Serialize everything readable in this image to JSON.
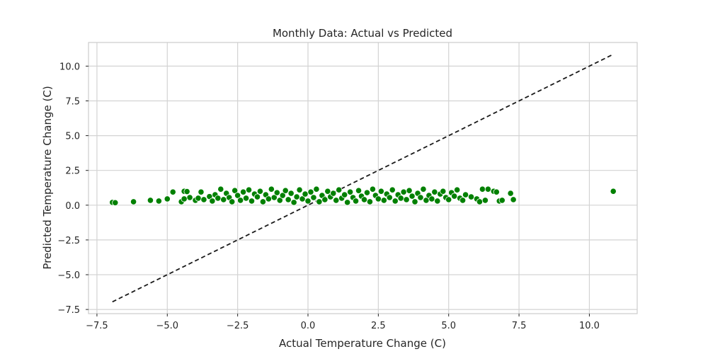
{
  "chart_data": {
    "type": "scatter",
    "title": "Monthly Data: Actual vs Predicted",
    "xlabel": "Actual Temperature Change (C)",
    "ylabel": "Predicted Temperature Change (C)",
    "xlim": [
      -7.8,
      11.7
    ],
    "ylim": [
      -7.8,
      11.7
    ],
    "xticks": [
      -7.5,
      -5.0,
      -2.5,
      0.0,
      2.5,
      5.0,
      7.5,
      10.0
    ],
    "xtick_labels": [
      "−7.5",
      "−5.0",
      "−2.5",
      "0.0",
      "2.5",
      "5.0",
      "7.5",
      "10.0"
    ],
    "yticks": [
      -7.5,
      -5.0,
      -2.5,
      0.0,
      2.5,
      5.0,
      7.5,
      10.0
    ],
    "ytick_labels": [
      "−7.5",
      "−5.0",
      "−2.5",
      "0.0",
      "2.5",
      "5.0",
      "7.5",
      "10.0"
    ],
    "grid": true,
    "point_color": "#008000",
    "point_edge_color": "#ffffff",
    "reference_line": {
      "x": [
        -6.95,
        10.85
      ],
      "y": [
        -6.95,
        10.85
      ],
      "style": "dashed",
      "color": "#1a1a1a"
    },
    "points": [
      [
        -6.95,
        0.2
      ],
      [
        -6.85,
        0.18
      ],
      [
        -6.2,
        0.25
      ],
      [
        -5.6,
        0.35
      ],
      [
        -5.3,
        0.3
      ],
      [
        -5.0,
        0.45
      ],
      [
        -4.8,
        0.95
      ],
      [
        -4.4,
        1.0
      ],
      [
        -4.3,
        0.98
      ],
      [
        -4.5,
        0.25
      ],
      [
        -4.2,
        0.55
      ],
      [
        -4.4,
        0.45
      ],
      [
        -4.0,
        0.35
      ],
      [
        -3.9,
        0.5
      ],
      [
        -3.8,
        0.95
      ],
      [
        -3.7,
        0.4
      ],
      [
        -3.5,
        0.62
      ],
      [
        -3.4,
        0.3
      ],
      [
        -3.3,
        0.75
      ],
      [
        -3.2,
        0.5
      ],
      [
        -3.1,
        1.15
      ],
      [
        -3.0,
        0.4
      ],
      [
        -2.9,
        0.85
      ],
      [
        -2.8,
        0.55
      ],
      [
        -2.7,
        0.25
      ],
      [
        -2.6,
        1.05
      ],
      [
        -2.5,
        0.7
      ],
      [
        -2.4,
        0.35
      ],
      [
        -2.3,
        0.95
      ],
      [
        -2.2,
        0.5
      ],
      [
        -2.1,
        1.1
      ],
      [
        -2.0,
        0.3
      ],
      [
        -1.9,
        0.8
      ],
      [
        -1.8,
        0.6
      ],
      [
        -1.7,
        1.0
      ],
      [
        -1.6,
        0.25
      ],
      [
        -1.5,
        0.75
      ],
      [
        -1.4,
        0.45
      ],
      [
        -1.3,
        1.15
      ],
      [
        -1.2,
        0.55
      ],
      [
        -1.1,
        0.9
      ],
      [
        -1.0,
        0.35
      ],
      [
        -0.9,
        0.7
      ],
      [
        -0.8,
        1.05
      ],
      [
        -0.7,
        0.4
      ],
      [
        -0.6,
        0.85
      ],
      [
        -0.5,
        0.2
      ],
      [
        -0.4,
        0.6
      ],
      [
        -0.3,
        1.1
      ],
      [
        -0.2,
        0.45
      ],
      [
        -0.1,
        0.8
      ],
      [
        0.0,
        0.3
      ],
      [
        0.1,
        0.95
      ],
      [
        0.2,
        0.55
      ],
      [
        0.3,
        1.15
      ],
      [
        0.4,
        0.25
      ],
      [
        0.5,
        0.7
      ],
      [
        0.6,
        0.4
      ],
      [
        0.7,
        1.0
      ],
      [
        0.8,
        0.6
      ],
      [
        0.9,
        0.85
      ],
      [
        1.0,
        0.35
      ],
      [
        1.1,
        1.1
      ],
      [
        1.2,
        0.5
      ],
      [
        1.3,
        0.75
      ],
      [
        1.4,
        0.2
      ],
      [
        1.5,
        0.95
      ],
      [
        1.6,
        0.55
      ],
      [
        1.7,
        0.3
      ],
      [
        1.8,
        1.05
      ],
      [
        1.9,
        0.65
      ],
      [
        2.0,
        0.4
      ],
      [
        2.1,
        0.9
      ],
      [
        2.2,
        0.25
      ],
      [
        2.3,
        1.15
      ],
      [
        2.4,
        0.7
      ],
      [
        2.5,
        0.45
      ],
      [
        2.6,
        1.0
      ],
      [
        2.7,
        0.35
      ],
      [
        2.8,
        0.8
      ],
      [
        2.9,
        0.55
      ],
      [
        3.0,
        1.1
      ],
      [
        3.1,
        0.3
      ],
      [
        3.2,
        0.75
      ],
      [
        3.3,
        0.5
      ],
      [
        3.4,
        0.95
      ],
      [
        3.5,
        0.4
      ],
      [
        3.6,
        1.05
      ],
      [
        3.7,
        0.65
      ],
      [
        3.8,
        0.25
      ],
      [
        3.9,
        0.85
      ],
      [
        4.0,
        0.55
      ],
      [
        4.1,
        1.15
      ],
      [
        4.2,
        0.35
      ],
      [
        4.3,
        0.7
      ],
      [
        4.4,
        0.45
      ],
      [
        4.5,
        0.95
      ],
      [
        4.6,
        0.3
      ],
      [
        4.7,
        0.8
      ],
      [
        4.8,
        1.0
      ],
      [
        4.9,
        0.55
      ],
      [
        5.0,
        0.4
      ],
      [
        5.1,
        0.9
      ],
      [
        5.2,
        0.65
      ],
      [
        5.3,
        1.1
      ],
      [
        5.4,
        0.5
      ],
      [
        5.5,
        0.35
      ],
      [
        5.6,
        0.75
      ],
      [
        5.8,
        0.6
      ],
      [
        6.0,
        0.45
      ],
      [
        6.1,
        0.25
      ],
      [
        6.2,
        1.15
      ],
      [
        6.3,
        0.35
      ],
      [
        6.4,
        1.15
      ],
      [
        6.6,
        1.0
      ],
      [
        6.7,
        0.95
      ],
      [
        6.8,
        0.3
      ],
      [
        6.9,
        0.35
      ],
      [
        7.2,
        0.85
      ],
      [
        7.3,
        0.4
      ],
      [
        10.85,
        1.0
      ]
    ]
  }
}
